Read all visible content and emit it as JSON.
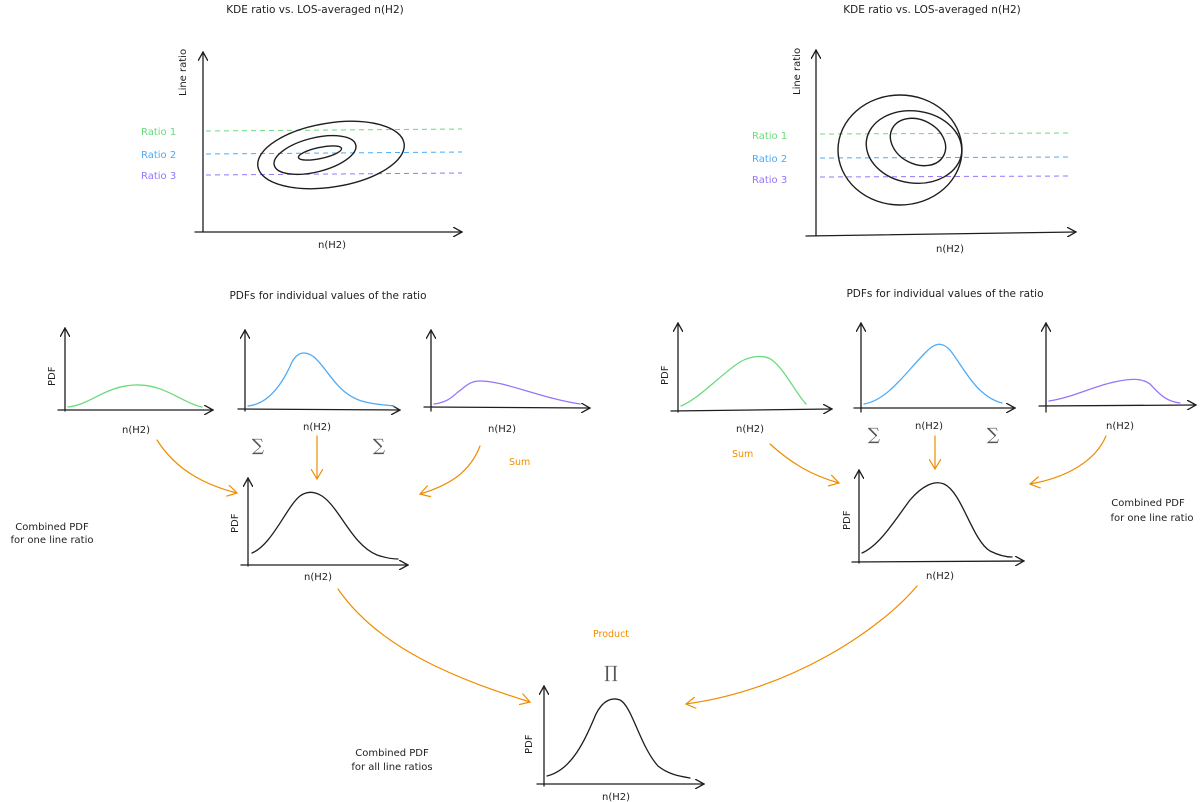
{
  "colors": {
    "ink": "#1e1e1e",
    "green": "#69db7c",
    "blue": "#4dabf7",
    "purple": "#9775fa",
    "orange": "#f08c00"
  },
  "left_kde": {
    "title": "KDE ratio vs. LOS-averaged n(H2)",
    "ylabel": "Line ratio",
    "xlabel": "n(H2)",
    "ratios": [
      "Ratio 1",
      "Ratio 2",
      "Ratio 3"
    ]
  },
  "right_kde": {
    "title": "KDE ratio vs. LOS-averaged n(H2)",
    "ylabel": "Line ratio",
    "xlabel": "n(H2)",
    "ratios": [
      "Ratio 1",
      "Ratio 2",
      "Ratio 3"
    ]
  },
  "left_pdfs": {
    "title": "PDFs for individual values of the ratio",
    "ylabel": "PDF",
    "xlabels": [
      "n(H2)",
      "n(H2)",
      "n(H2)"
    ],
    "sum_symbol": "∑",
    "sum_label": "Sum"
  },
  "right_pdfs": {
    "title": "PDFs for individual values of the ratio",
    "ylabel": "PDF",
    "xlabels": [
      "n(H2)",
      "n(H2)",
      "n(H2)"
    ],
    "sum_symbol": "∑",
    "sum_label": "Sum"
  },
  "left_combined": {
    "ylabel": "PDF",
    "xlabel": "n(H2)",
    "note_line1": "Combined PDF",
    "note_line2": "for one line ratio"
  },
  "right_combined": {
    "ylabel": "PDF",
    "xlabel": "n(H2)",
    "note_line1": "Combined PDF",
    "note_line2": "for one line ratio"
  },
  "final": {
    "ylabel": "PDF",
    "xlabel": "n(H2)",
    "product_label": "Product",
    "product_symbol": "∏",
    "note_line1": "Combined PDF",
    "note_line2": "for all line ratios"
  }
}
